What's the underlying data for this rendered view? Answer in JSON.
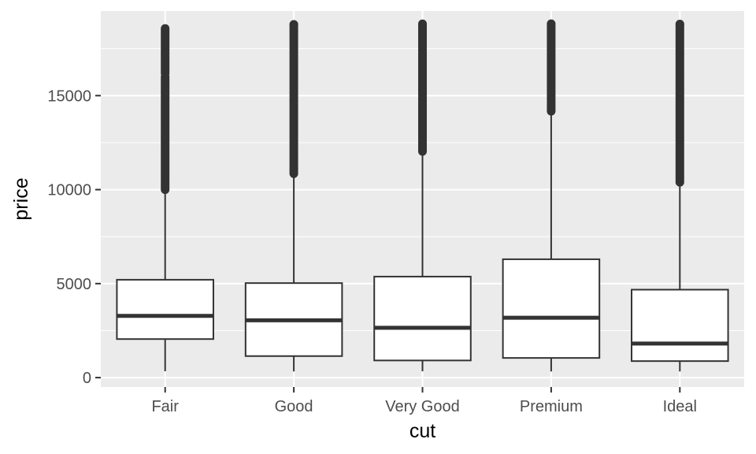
{
  "chart_data": {
    "type": "boxplot",
    "title": "",
    "xlabel": "cut",
    "ylabel": "price",
    "categories": [
      "Fair",
      "Good",
      "Very Good",
      "Premium",
      "Ideal"
    ],
    "ylim": [
      -500,
      19500
    ],
    "yticks": [
      0,
      5000,
      10000,
      15000
    ],
    "ytick_labels": [
      "0",
      "5000",
      "10000",
      "15000"
    ],
    "grid": true,
    "boxes": [
      {
        "category": "Fair",
        "whisker_low": 337,
        "q1": 2050,
        "median": 3282,
        "q3": 5206,
        "whisker_high": 9940,
        "outliers": {
          "min": 10000,
          "max": 18574,
          "gaps": [
            [
              16000,
              16100
            ]
          ]
        }
      },
      {
        "category": "Good",
        "whisker_low": 327,
        "q1": 1145,
        "median": 3050,
        "q3": 5028,
        "whisker_high": 10850,
        "outliers": {
          "min": 10850,
          "max": 18788,
          "gaps": []
        }
      },
      {
        "category": "Very Good",
        "whisker_low": 336,
        "q1": 912,
        "median": 2648,
        "q3": 5373,
        "whisker_high": 12030,
        "outliers": {
          "min": 12030,
          "max": 18818,
          "gaps": []
        }
      },
      {
        "category": "Premium",
        "whisker_low": 326,
        "q1": 1046,
        "median": 3185,
        "q3": 6296,
        "whisker_high": 14170,
        "outliers": {
          "min": 14170,
          "max": 18823,
          "gaps": []
        }
      },
      {
        "category": "Ideal",
        "whisker_low": 326,
        "q1": 878,
        "median": 1810,
        "q3": 4678,
        "whisker_high": 10390,
        "outliers": {
          "min": 10390,
          "max": 18806,
          "gaps": []
        }
      }
    ],
    "colors": {
      "panel": "#ebebeb",
      "grid_major": "#ffffff",
      "box_fill": "#ffffff",
      "box_line": "#333333",
      "outlier": "#333333"
    }
  }
}
